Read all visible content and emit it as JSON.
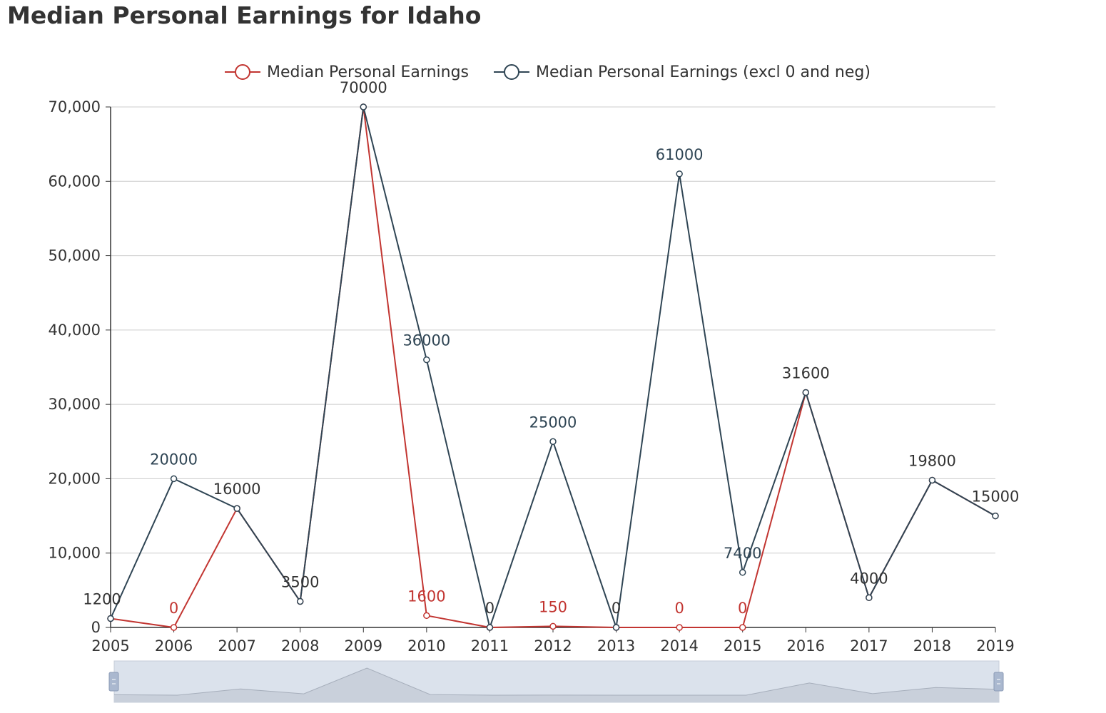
{
  "title": "Median Personal Earnings for Idaho",
  "chart_data": {
    "type": "line",
    "title": "Median Personal Earnings for Idaho",
    "xlabel": "",
    "ylabel": "",
    "x": [
      "2005",
      "2006",
      "2007",
      "2008",
      "2009",
      "2010",
      "2011",
      "2012",
      "2013",
      "2014",
      "2015",
      "2016",
      "2017",
      "2018",
      "2019"
    ],
    "ylim": [
      0,
      70000
    ],
    "yticks": [
      0,
      10000,
      20000,
      30000,
      40000,
      50000,
      60000,
      70000
    ],
    "ytick_labels": [
      "0",
      "10,000",
      "20,000",
      "30,000",
      "40,000",
      "50,000",
      "60,000",
      "70,000"
    ],
    "grid": true,
    "legend_position": "top-center",
    "series": [
      {
        "name": "Median Personal Earnings",
        "color": "#c23531",
        "values": [
          1200,
          0,
          16000,
          3500,
          70000,
          1600,
          0,
          150,
          0,
          0,
          0,
          31600,
          4000,
          19800,
          15000
        ],
        "labels": [
          "1200",
          "0",
          "16000",
          "3500",
          "70000",
          "1600",
          "0",
          "150",
          "0",
          "0",
          "0",
          "31600",
          "4000",
          "19800",
          "15000"
        ]
      },
      {
        "name": "Median Personal Earnings (excl 0 and neg)",
        "color": "#2f4554",
        "values": [
          1200,
          20000,
          16000,
          3500,
          70000,
          36000,
          0,
          25000,
          0,
          61000,
          7400,
          31600,
          4000,
          19800,
          15000
        ],
        "labels": [
          "1200",
          "20000",
          "16000",
          "3500",
          "70000",
          "36000",
          "0",
          "25000",
          "0",
          "61000",
          "7400",
          "31600",
          "4000",
          "19800",
          "15000"
        ]
      }
    ]
  }
}
